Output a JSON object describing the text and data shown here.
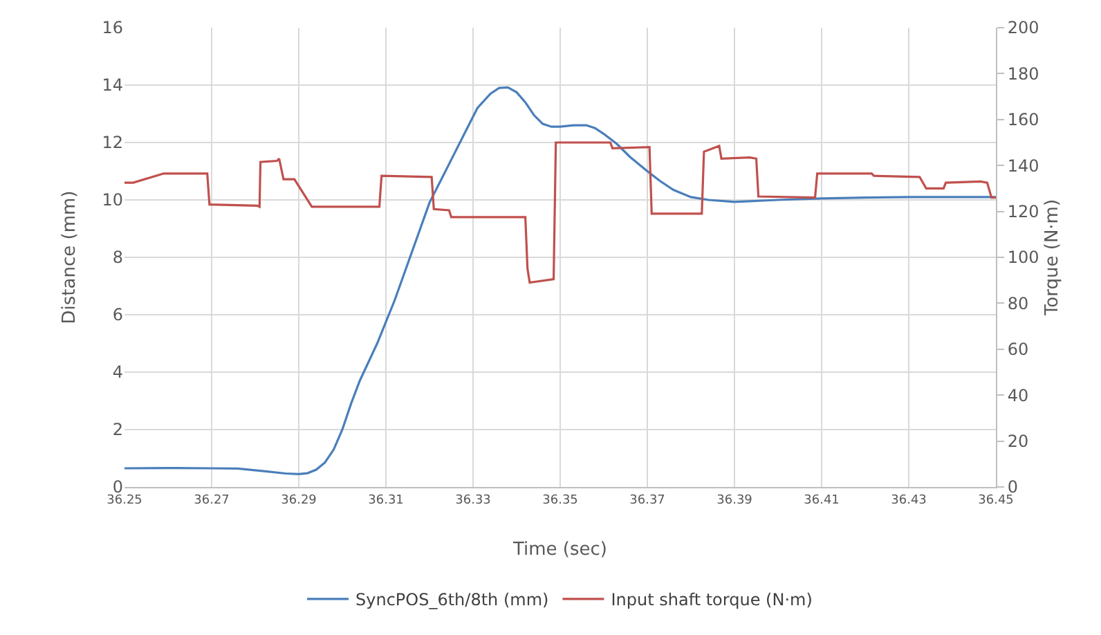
{
  "chart_data": {
    "type": "line",
    "xlabel": "Time (sec)",
    "ylabel": "Distance (mm)",
    "y2label": "Torque (N·m)",
    "xlim": [
      36.25,
      36.45
    ],
    "xticks": [
      36.25,
      36.27,
      36.29,
      36.31,
      36.33,
      36.35,
      36.37,
      36.39,
      36.41,
      36.43,
      36.45
    ],
    "ylim": [
      0,
      16
    ],
    "yticks": [
      0,
      2,
      4,
      6,
      8,
      10,
      12,
      14,
      16
    ],
    "y2lim": [
      0,
      200
    ],
    "y2ticks": [
      0,
      20,
      40,
      60,
      80,
      100,
      120,
      140,
      160,
      180,
      200
    ],
    "grid": true,
    "legend": "bottom",
    "marker": "none",
    "line_style": "solid",
    "series": [
      {
        "name": "SyncPOS_6th/8th (mm)",
        "color": "#4a7ebb",
        "x": [
          36.25,
          36.26,
          36.27,
          36.276,
          36.282,
          36.287,
          36.29,
          36.292,
          36.294,
          36.296,
          36.298,
          36.3,
          36.302,
          36.304,
          36.308,
          36.312,
          36.316,
          36.32,
          36.324,
          36.328,
          36.331,
          36.334,
          36.336,
          36.338,
          36.34,
          36.342,
          36.344,
          36.346,
          36.348,
          36.35,
          36.353,
          36.356,
          36.358,
          36.36,
          36.363,
          36.366,
          36.37,
          36.373,
          36.376,
          36.38,
          36.384,
          36.39,
          36.4,
          36.41,
          36.42,
          36.43,
          36.44,
          36.45
        ],
        "values": [
          0.65,
          0.66,
          0.65,
          0.64,
          0.55,
          0.47,
          0.45,
          0.48,
          0.6,
          0.85,
          1.3,
          2,
          2.9,
          3.7,
          5,
          6.5,
          8.2,
          9.9,
          11.1,
          12.3,
          13.2,
          13.7,
          13.9,
          13.92,
          13.75,
          13.4,
          12.95,
          12.65,
          12.55,
          12.55,
          12.6,
          12.6,
          12.5,
          12.3,
          11.95,
          11.5,
          11,
          10.65,
          10.35,
          10.1,
          10,
          9.93,
          10,
          10.05,
          10.08,
          10.1,
          10.1,
          10.1
        ]
      },
      {
        "name": "Input shaft torque (N·m)",
        "color": "#c0504d",
        "axis": "y2",
        "x": [
          36.25,
          36.252,
          36.259,
          36.269,
          36.2695,
          36.2805,
          36.281,
          36.2812,
          36.285,
          36.2855,
          36.2865,
          36.289,
          36.293,
          36.3085,
          36.309,
          36.3205,
          36.321,
          36.3245,
          36.325,
          36.342,
          36.3425,
          36.343,
          36.3485,
          36.349,
          36.3615,
          36.362,
          36.3705,
          36.371,
          36.3825,
          36.383,
          36.3865,
          36.387,
          36.3935,
          36.395,
          36.3955,
          36.4085,
          36.409,
          36.4215,
          36.422,
          36.4325,
          36.434,
          36.438,
          36.4385,
          36.4465,
          36.448,
          36.449,
          36.45
        ],
        "values": [
          132.5,
          132.5,
          136.5,
          136.5,
          123,
          122.5,
          122,
          141.5,
          142,
          143,
          134,
          134,
          122,
          122,
          135.5,
          135,
          121,
          120.5,
          117.5,
          117.5,
          95,
          89,
          90.5,
          150,
          150,
          147.5,
          148,
          119,
          119,
          146,
          148.5,
          143,
          143.5,
          143,
          126.5,
          126,
          136.5,
          136.5,
          135.5,
          135,
          130,
          130,
          132.5,
          133,
          132.5,
          126,
          126
        ]
      }
    ]
  }
}
